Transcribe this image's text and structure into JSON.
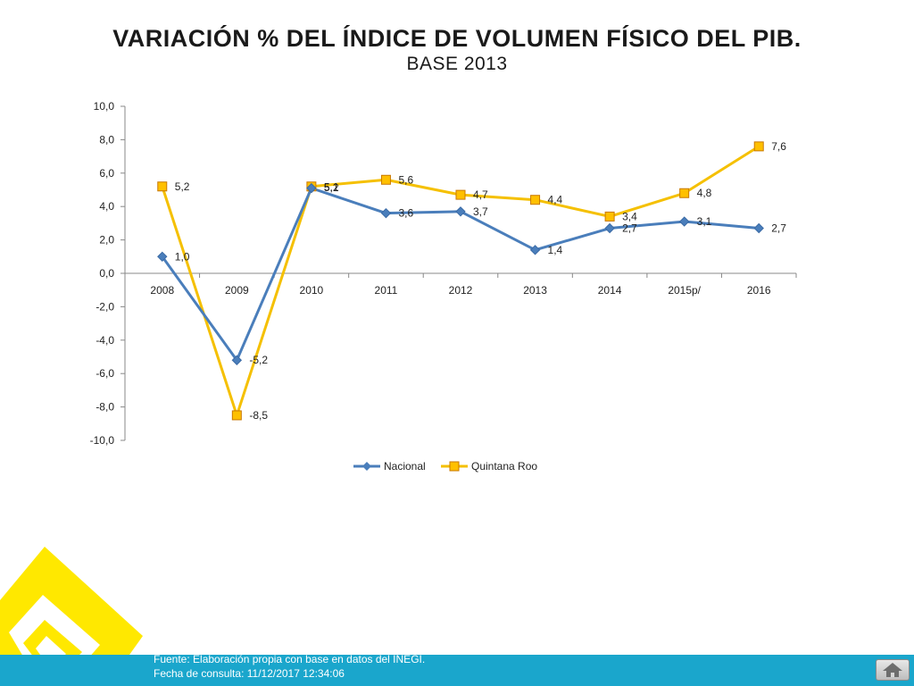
{
  "page": {
    "title": "VARIACIÓN % DEL ÍNDICE DE VOLUMEN FÍSICO DEL PIB.",
    "subtitle": "BASE 2013"
  },
  "footer": {
    "source": "Fuente: Elaboración propia con base en datos del INEGI.",
    "date": "Fecha de consulta:  11/12/2017 12:34:06",
    "home_icon": "home-icon",
    "bar_color": "#1aa6cc"
  },
  "logo": {
    "icon": "yellow-spiral-logo-icon",
    "color": "#ffe800"
  },
  "chart_data": {
    "type": "line",
    "categories": [
      "2008",
      "2009",
      "2010",
      "2011",
      "2012",
      "2013",
      "2014",
      "2015p/",
      "2016"
    ],
    "ylim": [
      -10,
      10
    ],
    "y_ticks": [
      "10,0",
      "8,0",
      "6,0",
      "4,0",
      "2,0",
      "0,0",
      "-2,0",
      "-4,0",
      "-6,0",
      "-8,0",
      "-10,0"
    ],
    "grid": false,
    "legend_position": "bottom",
    "series": [
      {
        "name": "Nacional",
        "color": "#4a7ebb",
        "marker": "diamond",
        "values": [
          1.0,
          -5.2,
          5.1,
          3.6,
          3.7,
          1.4,
          2.7,
          3.1,
          2.7
        ],
        "labels": [
          "1,0",
          "-5,2",
          "5,1",
          "3,6",
          "3,7",
          "1,4",
          "2,7",
          "3,1",
          "2,7"
        ]
      },
      {
        "name": "Quintana Roo",
        "color": "#f5c000",
        "marker": "square",
        "values": [
          5.2,
          -8.5,
          5.2,
          5.6,
          4.7,
          4.4,
          3.4,
          4.8,
          7.6
        ],
        "labels": [
          "5,2",
          "-8,5",
          "5,2",
          "5,6",
          "4,7",
          "4,4",
          "3,4",
          "4,8",
          "7,6"
        ]
      }
    ]
  }
}
